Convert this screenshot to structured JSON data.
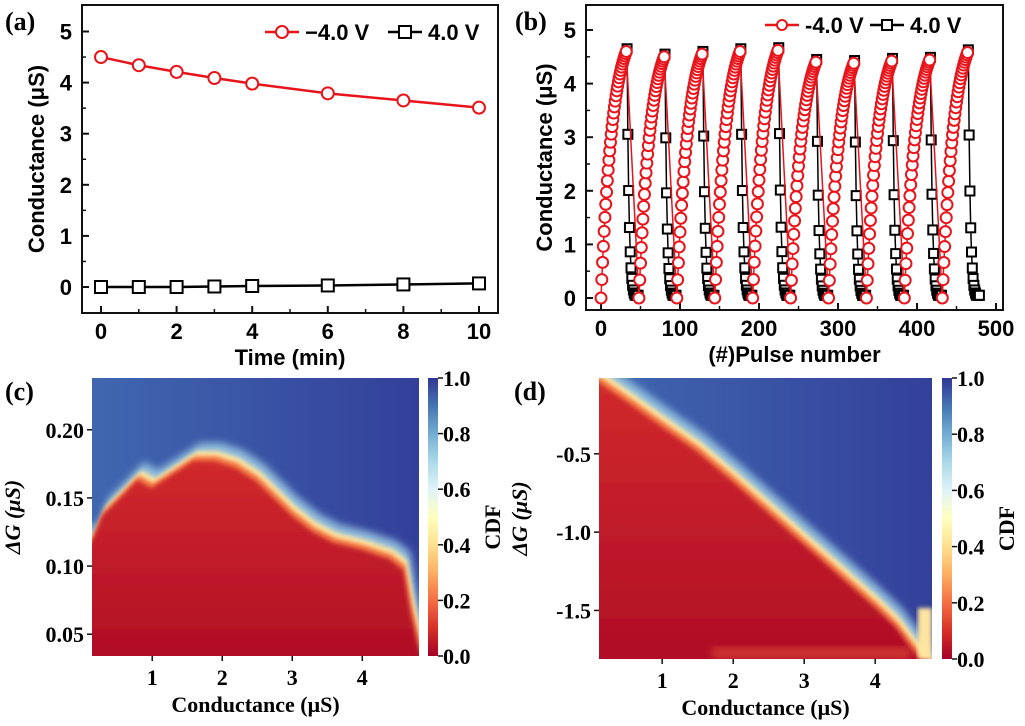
{
  "chart_data": [
    {
      "panel": "(a)",
      "type": "line",
      "xlabel": "Time (min)",
      "ylabel": "Conductance (μS)",
      "xlim": [
        -0.5,
        10.5
      ],
      "ylim": [
        -0.5,
        5.5
      ],
      "xticks": [
        0,
        2,
        4,
        6,
        8,
        10
      ],
      "yticks": [
        0,
        1,
        2,
        3,
        4,
        5
      ],
      "legend_position": "top-right",
      "series": [
        {
          "name": "−4.0 V",
          "color": "#e8141b",
          "marker": "circle",
          "x": [
            0,
            1,
            2,
            3,
            4,
            6,
            8,
            10
          ],
          "y": [
            4.5,
            4.34,
            4.21,
            4.09,
            3.98,
            3.79,
            3.65,
            3.51
          ]
        },
        {
          "name": "4.0 V",
          "color": "#000000",
          "marker": "square",
          "x": [
            0,
            1,
            2,
            3,
            4,
            6,
            8,
            10
          ],
          "y": [
            0.0,
            0.0,
            0.0,
            0.01,
            0.02,
            0.03,
            0.05,
            0.07
          ]
        }
      ]
    },
    {
      "panel": "(b)",
      "type": "scatter",
      "xlabel": "(#)Pulse number",
      "ylabel": "Conductance (μS)",
      "xlim": [
        -20,
        510
      ],
      "ylim": [
        -0.2,
        5.5
      ],
      "xticks": [
        0,
        100,
        200,
        300,
        400,
        500
      ],
      "yticks": [
        0,
        1,
        2,
        3,
        4,
        5
      ],
      "legend_position": "top-right",
      "cycles": 10,
      "pulses_per_cycle": 48,
      "potentiation_pulses": 33,
      "depression_pulses": 15,
      "cycle_peaks": [
        4.6,
        4.5,
        4.55,
        4.6,
        4.62,
        4.4,
        4.38,
        4.42,
        4.44,
        4.58
      ],
      "series": [
        {
          "name": "-4.0 V",
          "color": "#e8141b",
          "marker": "circle"
        },
        {
          "name": "4.0 V",
          "color": "#000000",
          "marker": "square"
        }
      ]
    },
    {
      "panel": "(c)",
      "type": "heatmap",
      "xlabel": "Conductance (μS)",
      "ylabel": "ΔG (μS)",
      "colorbar_label": "CDF",
      "xlim": [
        0.14,
        4.81
      ],
      "ylim": [
        0.034,
        0.238
      ],
      "xticks": [
        "1",
        "2",
        "3",
        "4"
      ],
      "xtick_values": [
        1,
        2,
        3,
        4
      ],
      "yticks": [
        "0.05",
        "0.10",
        "0.15",
        "0.20"
      ],
      "ytick_values": [
        0.05,
        0.1,
        0.15,
        0.2
      ],
      "colorbar_ticks": [
        "0.0",
        "0.2",
        "0.4",
        "0.6",
        "0.8",
        "1.0"
      ],
      "cdf_05_boundary": {
        "x": [
          0.14,
          0.3,
          0.5,
          0.8,
          1.0,
          1.3,
          1.6,
          1.9,
          2.2,
          2.5,
          2.8,
          3.0,
          3.3,
          3.6,
          4.0,
          4.4,
          4.6,
          4.7,
          4.81
        ],
        "y": [
          0.12,
          0.14,
          0.15,
          0.166,
          0.16,
          0.17,
          0.18,
          0.18,
          0.175,
          0.165,
          0.15,
          0.14,
          0.128,
          0.12,
          0.115,
          0.108,
          0.1,
          0.07,
          0.045
        ]
      }
    },
    {
      "panel": "(d)",
      "type": "heatmap",
      "xlabel": "Conductance (μS)",
      "ylabel": "ΔG (μS)",
      "colorbar_label": "CDF",
      "xlim": [
        0.11,
        4.8
      ],
      "ylim": [
        -1.81,
        -0.016
      ],
      "xticks": [
        "1",
        "2",
        "3",
        "4"
      ],
      "xtick_values": [
        1,
        2,
        3,
        4
      ],
      "yticks": [
        "-0.5",
        "-1.0",
        "-1.5"
      ],
      "ytick_values": [
        -0.5,
        -1.0,
        -1.5
      ],
      "colorbar_ticks": [
        "0.0",
        "0.2",
        "0.4",
        "0.6",
        "0.8",
        "1.0"
      ],
      "cdf_05_boundary": {
        "x": [
          0.11,
          0.6,
          1.0,
          1.5,
          2.0,
          2.5,
          3.0,
          3.5,
          4.0,
          4.3,
          4.6
        ],
        "y": [
          -0.016,
          -0.17,
          -0.3,
          -0.46,
          -0.65,
          -0.85,
          -1.05,
          -1.25,
          -1.45,
          -1.58,
          -1.76
        ]
      }
    }
  ]
}
